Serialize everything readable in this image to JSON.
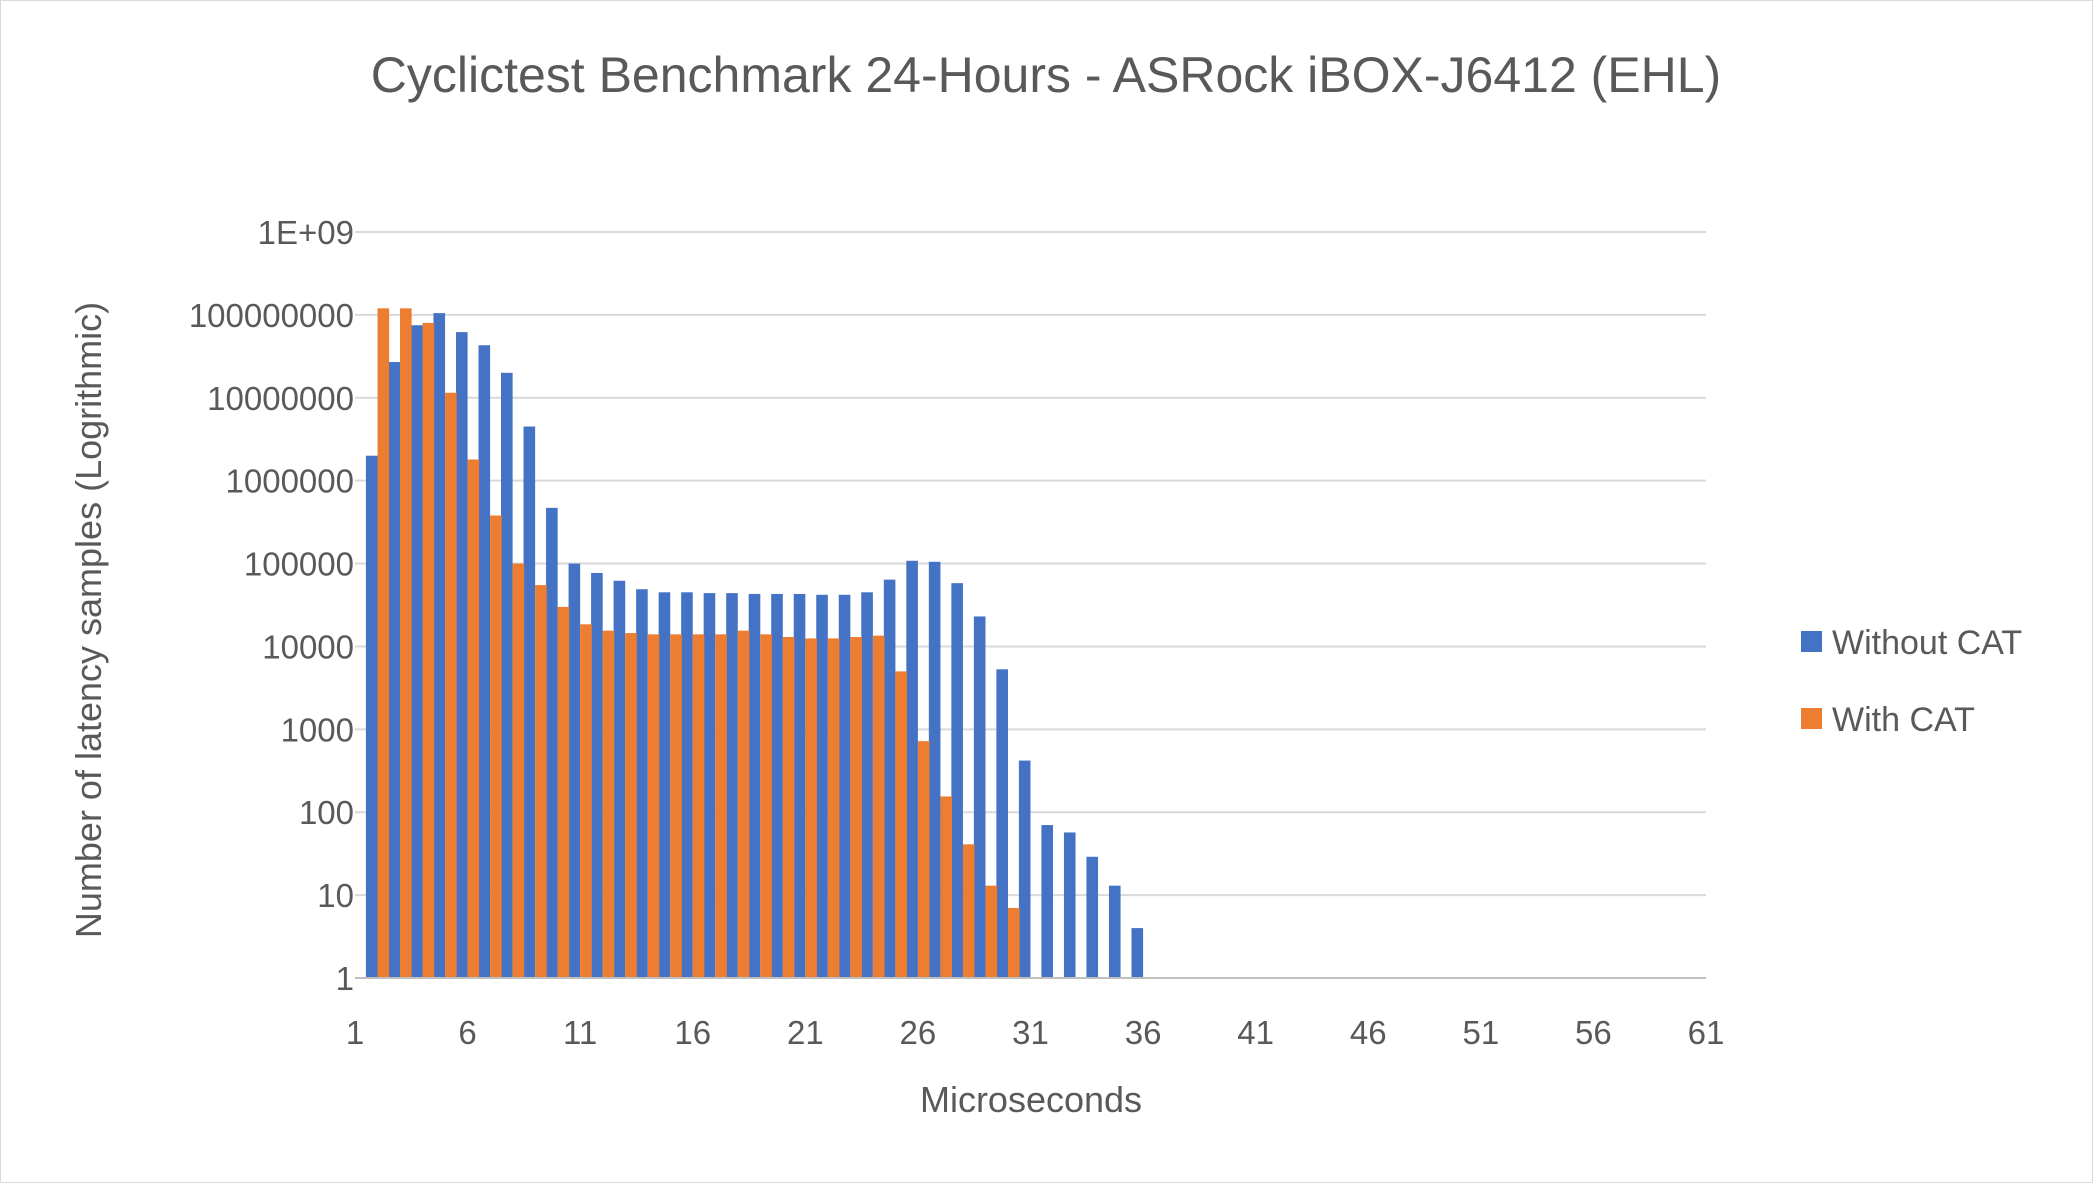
{
  "chart_data": {
    "type": "bar",
    "title": "Cyclictest Benchmark 24-Hours - ASRock iBOX-J6412 (EHL)",
    "xlabel": "Microseconds",
    "ylabel": "Number of latency samples (Logrithmic)",
    "y_scale": "log10",
    "ylim": [
      1,
      1000000000
    ],
    "y_tick_values": [
      1,
      10,
      100,
      1000,
      10000,
      100000,
      1000000,
      10000000,
      100000000,
      1000000000
    ],
    "y_tick_labels": [
      "1",
      "10",
      "100",
      "1000",
      "10000",
      "100000",
      "1000000",
      "10000000",
      "100000000",
      "1E+09"
    ],
    "x_tick_labels": [
      "1",
      "6",
      "11",
      "16",
      "21",
      "26",
      "31",
      "36",
      "41",
      "46",
      "51",
      "56",
      "61"
    ],
    "categories": [
      1,
      2,
      3,
      4,
      5,
      6,
      7,
      8,
      9,
      10,
      11,
      12,
      13,
      14,
      15,
      16,
      17,
      18,
      19,
      20,
      21,
      22,
      23,
      24,
      25,
      26,
      27,
      28,
      29,
      30,
      31,
      32,
      33,
      34,
      35,
      36,
      37,
      38,
      39,
      40,
      41,
      42,
      43,
      44,
      45,
      46,
      47,
      48,
      49,
      50,
      51,
      52,
      53,
      54,
      55,
      56,
      57,
      58,
      59,
      60,
      61
    ],
    "series": [
      {
        "name": "Without CAT",
        "color": "#4472c4",
        "values": [
          0,
          2000000,
          27000000,
          75000000,
          105000000,
          62000000,
          43000000,
          20000000,
          4500000,
          470000,
          100000,
          77000,
          62000,
          49000,
          45000,
          45000,
          44000,
          44000,
          43000,
          43000,
          43000,
          42000,
          42000,
          45000,
          64000,
          108000,
          105000,
          58000,
          23000,
          5300,
          420,
          70,
          57,
          29,
          13,
          4,
          0,
          0,
          0,
          0,
          0,
          0,
          0,
          0,
          0,
          0,
          0,
          0,
          0,
          0,
          0,
          0,
          0,
          0,
          0,
          0,
          0,
          0,
          0,
          0,
          0
        ]
      },
      {
        "name": "With CAT",
        "color": "#ed7d31",
        "values": [
          0,
          120000000,
          120000000,
          80000000,
          11500000,
          1800000,
          380000,
          100000,
          55000,
          30000,
          18500,
          15500,
          14500,
          14000,
          14000,
          14000,
          14000,
          15500,
          14000,
          13000,
          12500,
          12500,
          13000,
          13500,
          5000,
          720,
          155,
          41,
          13,
          7,
          0,
          0,
          0,
          0,
          0,
          0,
          0,
          0,
          0,
          0,
          0,
          0,
          0,
          0,
          0,
          0,
          0,
          0,
          0,
          0,
          0,
          0,
          0,
          0,
          0,
          0,
          0,
          0,
          0,
          0,
          0
        ]
      }
    ],
    "legend_position": "right"
  }
}
